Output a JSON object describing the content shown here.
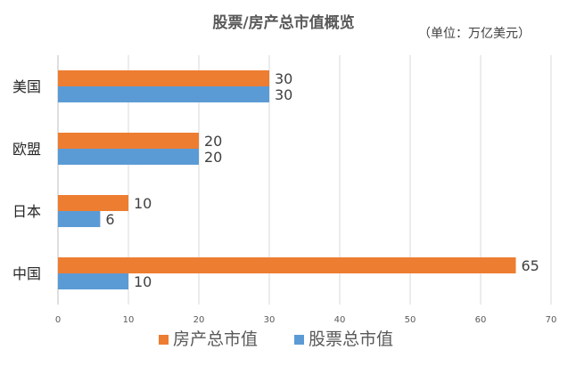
{
  "chart_data": {
    "type": "bar",
    "orientation": "horizontal",
    "title": "股票/房产总市值概览",
    "unit_note": "（单位：万亿美元）",
    "categories": [
      "美国",
      "欧盟",
      "日本",
      "中国"
    ],
    "series": [
      {
        "name": "房产总市值",
        "color": "#ED7D31",
        "values": [
          30,
          20,
          10,
          65
        ]
      },
      {
        "name": "股票总市值",
        "color": "#5B9BD5",
        "values": [
          30,
          20,
          6,
          10
        ]
      }
    ],
    "xlim": [
      0,
      70
    ],
    "xticks": [
      "0",
      "10",
      "20",
      "30",
      "40",
      "50",
      "60",
      "70"
    ],
    "grid": true,
    "legend_position": "bottom"
  }
}
